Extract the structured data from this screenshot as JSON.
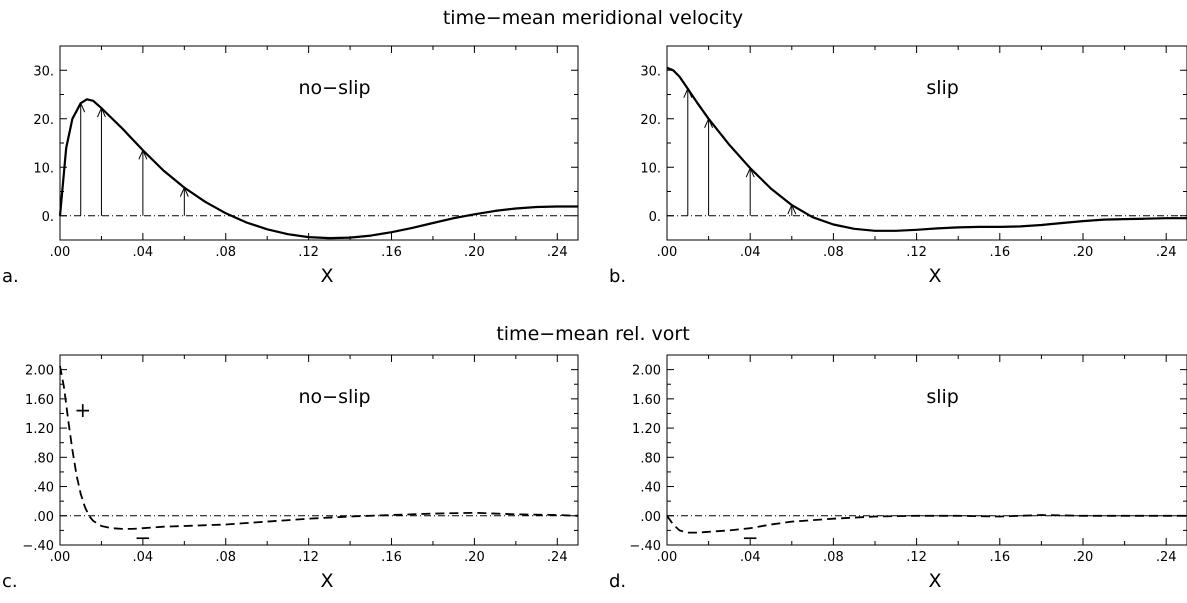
{
  "top_row_title": "time−mean meridional velocity",
  "bottom_row_title": "time−mean rel. vort",
  "chart_data": [
    {
      "type": "line",
      "panel_letter": "a.",
      "title": "no−slip",
      "xlabel": "X",
      "ylabel": "",
      "xlim": [
        0,
        0.25
      ],
      "ylim": [
        -5,
        35
      ],
      "x_tick_labels": [
        ".00",
        ".04",
        ".08",
        ".12",
        ".16",
        ".20",
        ".24"
      ],
      "x_tick_values": [
        0,
        0.04,
        0.08,
        0.12,
        0.16,
        0.2,
        0.24
      ],
      "y_tick_labels": [
        "0.",
        "10.",
        "20.",
        "30."
      ],
      "y_tick_values": [
        0,
        10,
        20,
        30
      ],
      "line_style": "solid",
      "zero_line": true,
      "grid": false,
      "series": [
        {
          "x": [
            0,
            0.003,
            0.006,
            0.01,
            0.013,
            0.016,
            0.02,
            0.03,
            0.04,
            0.05,
            0.06,
            0.07,
            0.08,
            0.09,
            0.1,
            0.11,
            0.12,
            0.13,
            0.14,
            0.15,
            0.16,
            0.17,
            0.18,
            0.19,
            0.2,
            0.21,
            0.22,
            0.23,
            0.24,
            0.25
          ],
          "values": [
            0,
            14,
            20,
            23.2,
            24,
            23.7,
            22.2,
            18,
            13.5,
            9.3,
            5.8,
            2.9,
            0.5,
            -1.4,
            -2.8,
            -3.8,
            -4.4,
            -4.6,
            -4.5,
            -4.1,
            -3.4,
            -2.5,
            -1.5,
            -0.5,
            0.3,
            1.0,
            1.5,
            1.8,
            1.9,
            1.9
          ]
        }
      ],
      "arrows": [
        {
          "x": 0.01,
          "value": 23.2
        },
        {
          "x": 0.02,
          "value": 22.2
        },
        {
          "x": 0.04,
          "value": 13.5
        },
        {
          "x": 0.06,
          "value": 5.8
        }
      ]
    },
    {
      "type": "line",
      "panel_letter": "b.",
      "title": "slip",
      "xlabel": "X",
      "ylabel": "",
      "xlim": [
        0,
        0.25
      ],
      "ylim": [
        -5,
        35
      ],
      "x_tick_labels": [
        ".00",
        ".04",
        ".08",
        ".12",
        ".16",
        ".20",
        ".24"
      ],
      "x_tick_values": [
        0,
        0.04,
        0.08,
        0.12,
        0.16,
        0.2,
        0.24
      ],
      "y_tick_labels": [
        "0.",
        "10.",
        "20.",
        "30."
      ],
      "y_tick_values": [
        0,
        10,
        20,
        30
      ],
      "line_style": "solid",
      "zero_line": true,
      "grid": false,
      "series": [
        {
          "x": [
            0,
            0.003,
            0.006,
            0.01,
            0.015,
            0.02,
            0.03,
            0.04,
            0.05,
            0.06,
            0.07,
            0.08,
            0.09,
            0.1,
            0.11,
            0.12,
            0.13,
            0.14,
            0.15,
            0.16,
            0.17,
            0.18,
            0.19,
            0.2,
            0.21,
            0.22,
            0.23,
            0.24,
            0.25
          ],
          "values": [
            30.5,
            30,
            28.7,
            26.2,
            23,
            20,
            14.6,
            9.8,
            5.6,
            2.2,
            -0.3,
            -1.8,
            -2.7,
            -3.1,
            -3.1,
            -2.9,
            -2.6,
            -2.4,
            -2.3,
            -2.3,
            -2.2,
            -1.9,
            -1.5,
            -1.1,
            -0.8,
            -0.7,
            -0.6,
            -0.5,
            -0.5
          ]
        }
      ],
      "arrows": [
        {
          "x": 0.01,
          "value": 26.2
        },
        {
          "x": 0.02,
          "value": 20.0
        },
        {
          "x": 0.04,
          "value": 9.8
        },
        {
          "x": 0.06,
          "value": 2.2
        }
      ]
    },
    {
      "type": "line",
      "panel_letter": "c.",
      "title": "no−slip",
      "xlabel": "X",
      "ylabel": "",
      "xlim": [
        0,
        0.25
      ],
      "ylim": [
        -0.4,
        2.2
      ],
      "x_tick_labels": [
        ".00",
        ".04",
        ".08",
        ".12",
        ".16",
        ".20",
        ".24"
      ],
      "x_tick_values": [
        0,
        0.04,
        0.08,
        0.12,
        0.16,
        0.2,
        0.24
      ],
      "y_tick_labels": [
        "−.40",
        ".00",
        ".40",
        ".80",
        "1.20",
        "1.60",
        "2.00"
      ],
      "y_tick_values": [
        -0.4,
        0,
        0.4,
        0.8,
        1.2,
        1.6,
        2.0
      ],
      "line_style": "dashed",
      "zero_line": true,
      "grid": false,
      "annotations": [
        {
          "text": "+",
          "x": 0.011,
          "y": 1.45
        },
        {
          "text": "−",
          "x": 0.04,
          "y": -0.3
        }
      ],
      "series": [
        {
          "x": [
            0,
            0.002,
            0.004,
            0.006,
            0.008,
            0.01,
            0.012,
            0.014,
            0.016,
            0.02,
            0.025,
            0.03,
            0.035,
            0.04,
            0.05,
            0.06,
            0.08,
            0.1,
            0.12,
            0.14,
            0.16,
            0.18,
            0.2,
            0.22,
            0.24,
            0.25
          ],
          "values": [
            2.05,
            1.75,
            1.3,
            0.9,
            0.55,
            0.3,
            0.12,
            0.0,
            -0.07,
            -0.14,
            -0.17,
            -0.18,
            -0.18,
            -0.17,
            -0.15,
            -0.14,
            -0.12,
            -0.08,
            -0.04,
            -0.01,
            0.01,
            0.03,
            0.04,
            0.02,
            0.01,
            0.0
          ]
        }
      ]
    },
    {
      "type": "line",
      "panel_letter": "d.",
      "title": "slip",
      "xlabel": "X",
      "ylabel": "",
      "xlim": [
        0,
        0.25
      ],
      "ylim": [
        -0.4,
        2.2
      ],
      "x_tick_labels": [
        ".00",
        ".04",
        ".08",
        ".12",
        ".16",
        ".20",
        ".24"
      ],
      "x_tick_values": [
        0,
        0.04,
        0.08,
        0.12,
        0.16,
        0.2,
        0.24
      ],
      "y_tick_labels": [
        "−.40",
        ".00",
        ".40",
        ".80",
        "1.20",
        "1.60",
        "2.00"
      ],
      "y_tick_values": [
        -0.4,
        0,
        0.4,
        0.8,
        1.2,
        1.6,
        2.0
      ],
      "line_style": "dashed",
      "zero_line": true,
      "grid": false,
      "annotations": [
        {
          "text": "−",
          "x": 0.04,
          "y": -0.3
        }
      ],
      "series": [
        {
          "x": [
            0,
            0.003,
            0.006,
            0.01,
            0.015,
            0.02,
            0.03,
            0.04,
            0.05,
            0.06,
            0.08,
            0.1,
            0.12,
            0.14,
            0.16,
            0.18,
            0.2,
            0.22,
            0.24,
            0.25
          ],
          "values": [
            0.0,
            -0.12,
            -0.2,
            -0.23,
            -0.23,
            -0.22,
            -0.2,
            -0.17,
            -0.12,
            -0.08,
            -0.04,
            -0.01,
            0.0,
            0.0,
            -0.01,
            0.01,
            0.0,
            0.0,
            0.0,
            0.0
          ]
        }
      ]
    }
  ]
}
